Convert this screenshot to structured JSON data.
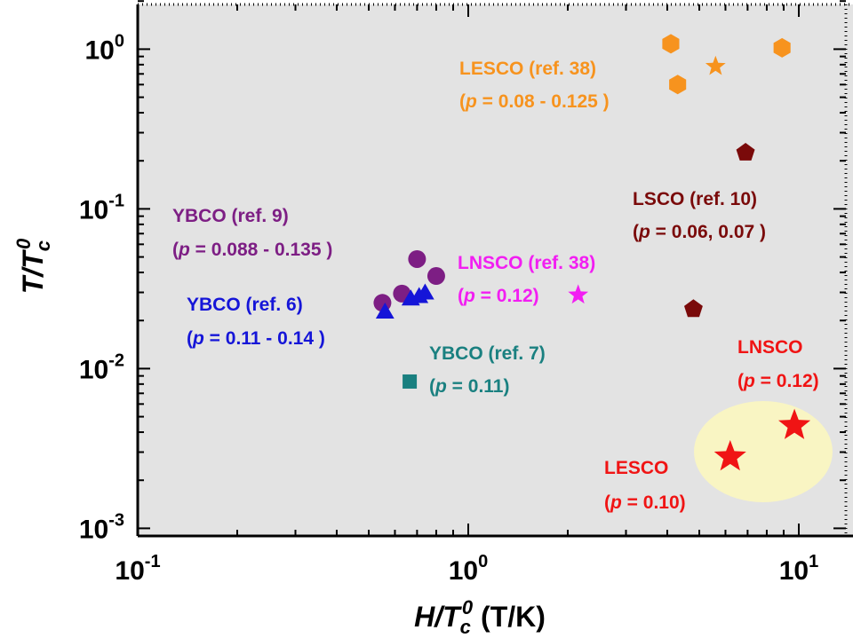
{
  "chart_data": {
    "type": "scatter",
    "x_scale": "log",
    "y_scale": "log",
    "xlim": [
      0.1,
      15
    ],
    "ylim": [
      0.001,
      2
    ],
    "xlabel": {
      "main": "H/T",
      "sub": "c",
      "sup": "0",
      "unit": " (T/K)"
    },
    "ylabel": {
      "main": "T/T",
      "sub": "c",
      "sup": "0"
    },
    "x_ticks": [
      {
        "value": 0.1,
        "base": "10",
        "exp": "-1"
      },
      {
        "value": 1,
        "base": "10",
        "exp": "0"
      },
      {
        "value": 10,
        "base": "10",
        "exp": "1"
      }
    ],
    "y_ticks": [
      {
        "value": 0.001,
        "base": "10",
        "exp": "-3"
      },
      {
        "value": 0.01,
        "base": "10",
        "exp": "-2"
      },
      {
        "value": 0.1,
        "base": "10",
        "exp": "-1"
      },
      {
        "value": 1,
        "base": "10",
        "exp": "0"
      }
    ],
    "background_color": "#e3e3e3",
    "highlight_region": {
      "center": [
        7.9,
        0.0036
      ],
      "color": "#f9f5c3"
    },
    "series": [
      {
        "name": "LESCO (ref. 38)",
        "marker": "hexagon",
        "color": "#f7931e",
        "points": [
          [
            4.1,
            1.08
          ],
          [
            4.3,
            0.6
          ],
          [
            8.9,
            1.02
          ]
        ]
      },
      {
        "name": "LESCO (ref. 38)",
        "marker": "star",
        "color": "#f7931e",
        "points": [
          [
            5.6,
            0.78
          ]
        ]
      },
      {
        "name": "LSCO (ref. 10)",
        "marker": "pentagon",
        "color": "#7a0a0a",
        "points": [
          [
            6.9,
            0.225
          ],
          [
            4.8,
            0.0236
          ]
        ]
      },
      {
        "name": "YBCO (ref. 9)",
        "marker": "circle",
        "color": "#7d1e84",
        "points": [
          [
            0.55,
            0.0258
          ],
          [
            0.63,
            0.0295
          ],
          [
            0.7,
            0.0485
          ],
          [
            0.8,
            0.038
          ]
        ]
      },
      {
        "name": "YBCO (ref. 6)",
        "marker": "triangle",
        "color": "#1515d8",
        "points": [
          [
            0.56,
            0.0228
          ],
          [
            0.67,
            0.0275
          ],
          [
            0.71,
            0.0285
          ],
          [
            0.74,
            0.03
          ]
        ]
      },
      {
        "name": "YBCO (ref. 7)",
        "marker": "square",
        "color": "#1a8080",
        "points": [
          [
            0.665,
            0.0083
          ]
        ]
      },
      {
        "name": "LNSCO (ref. 38)",
        "marker": "star",
        "color": "#f21ef2",
        "points": [
          [
            2.15,
            0.0289
          ]
        ]
      },
      {
        "name": "LNSCO",
        "marker": "star-large",
        "color": "#f01414",
        "points": [
          [
            9.7,
            0.0044
          ]
        ]
      },
      {
        "name": "LESCO",
        "marker": "star-large",
        "color": "#f01414",
        "points": [
          [
            6.2,
            0.0028
          ]
        ]
      }
    ],
    "annotations": [
      {
        "key": "lesco38",
        "color": "#f7931e",
        "line1": "LESCO (ref. 38)",
        "p_prefix": "(",
        "p_symbol": "p",
        "p_value": " = 0.08 - 0.125 )"
      },
      {
        "key": "lsco10",
        "color": "#7a0a0a",
        "line1": "LSCO (ref. 10)",
        "p_prefix": "(",
        "p_symbol": "p",
        "p_value": " = 0.06, 0.07 )"
      },
      {
        "key": "ybco9",
        "color": "#7d1e84",
        "line1": "YBCO (ref. 9)",
        "p_prefix": "(",
        "p_symbol": "p",
        "p_value": " = 0.088 - 0.135 )"
      },
      {
        "key": "lnsco38",
        "color": "#f21ef2",
        "line1": "LNSCO (ref. 38)",
        "p_prefix": "(",
        "p_symbol": "p",
        "p_value": " = 0.12)"
      },
      {
        "key": "ybco6",
        "color": "#1515d8",
        "line1": "YBCO (ref. 6)",
        "p_prefix": "(",
        "p_symbol": "p",
        "p_value": " = 0.11 - 0.14 )"
      },
      {
        "key": "ybco7",
        "color": "#1a8080",
        "line1": "YBCO (ref. 7)",
        "p_prefix": "(",
        "p_symbol": "p",
        "p_value": " = 0.11)"
      },
      {
        "key": "lnsco",
        "color": "#f01414",
        "line1": "LNSCO",
        "p_prefix": "(",
        "p_symbol": "p",
        "p_value": " = 0.12)"
      },
      {
        "key": "lesco",
        "color": "#f01414",
        "line1": "LESCO",
        "p_prefix": "(",
        "p_symbol": "p",
        "p_value": " = 0.10)"
      }
    ]
  }
}
